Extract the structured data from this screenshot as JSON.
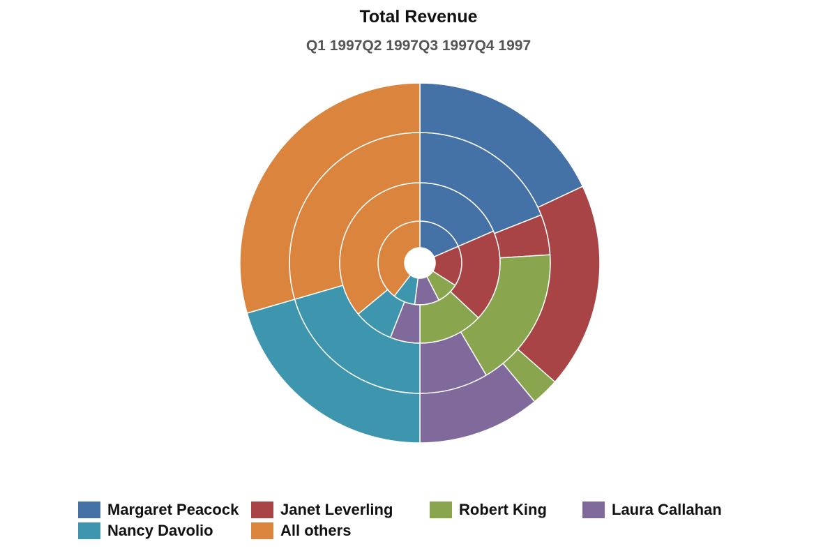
{
  "chart_data": {
    "type": "pie",
    "variant": "multi-level-donut",
    "title": "Total Revenue",
    "subtitle_parts": [
      "Q1 1997",
      "Q2 1997",
      "Q3 1997",
      "Q4 1997"
    ],
    "rings_inner_to_outer": [
      "Q1 1997",
      "Q2 1997",
      "Q3 1997",
      "Q4 1997"
    ],
    "categories": [
      "Margaret Peacock",
      "Janet Leverling",
      "Robert King",
      "Laura Callahan",
      "Nancy Davolio",
      "All others"
    ],
    "colors": [
      "#4472a7",
      "#a84445",
      "#89a54e",
      "#80699b",
      "#3d96ae",
      "#db843d"
    ],
    "series": [
      {
        "values": [
          18.5,
          15.5,
          8.5,
          9.5,
          8.5,
          39.5
        ]
      },
      {
        "values": [
          18.5,
          18.5,
          13.0,
          6.0,
          8.0,
          36.0
        ]
      },
      {
        "values": [
          19.0,
          5.0,
          17.5,
          8.5,
          20.5,
          29.5
        ]
      },
      {
        "values": [
          18.0,
          18.5,
          2.5,
          11.0,
          20.5,
          29.5
        ]
      }
    ],
    "legend_position": "bottom"
  }
}
